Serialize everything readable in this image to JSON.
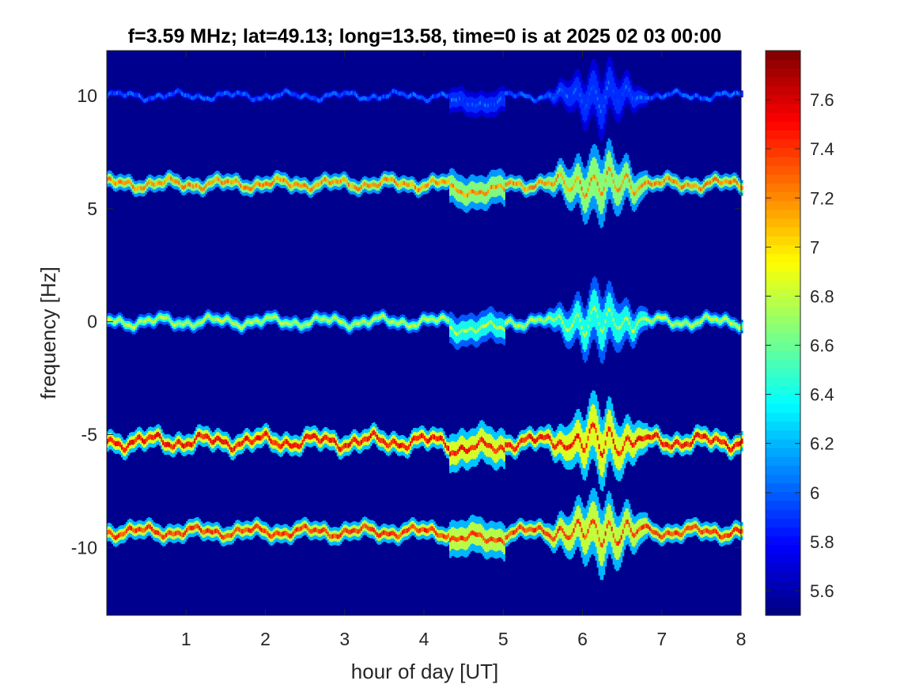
{
  "chart_data": {
    "type": "heatmap",
    "title": "f=3.59 MHz;  lat=49.13; long=13.58, time=0 is at 2025 02 03 00:00",
    "xlabel": "hour of day [UT]",
    "ylabel": "frequency [Hz]",
    "xlim": [
      0,
      8
    ],
    "ylim": [
      -13,
      12
    ],
    "xticks": [
      1,
      2,
      3,
      4,
      5,
      6,
      7,
      8
    ],
    "xtick_labels": [
      "1",
      "2",
      "3",
      "4",
      "5",
      "6",
      "7",
      "8"
    ],
    "yticks": [
      10,
      5,
      0,
      -5,
      -10
    ],
    "ytick_labels": [
      "10",
      "5",
      "0",
      "-5",
      "-10"
    ],
    "colormap": "jet",
    "background_color": "#00008f",
    "colorbar": {
      "clim": [
        5.5,
        7.8
      ],
      "ticks": [
        7.6,
        7.4,
        7.2,
        7,
        6.8,
        6.6,
        6.4,
        6.2,
        6,
        5.8,
        5.6
      ],
      "tick_labels": [
        "7.6",
        "7.4",
        "7.2",
        "7",
        "6.8",
        "6.6",
        "6.4",
        "6.2",
        "6",
        "5.8",
        "5.6"
      ]
    },
    "series": [
      {
        "center": 10.0,
        "amplitude": 0.12,
        "width": 0.15,
        "intensity": 6.1
      },
      {
        "center": 6.1,
        "amplitude": 0.15,
        "width": 0.35,
        "intensity": 7.3
      },
      {
        "center": 0.0,
        "amplitude": 0.15,
        "width": 0.3,
        "intensity": 6.9
      },
      {
        "center": -5.3,
        "amplitude": 0.2,
        "width": 0.45,
        "intensity": 7.6
      },
      {
        "center": -9.3,
        "amplitude": 0.15,
        "width": 0.4,
        "intensity": 7.5
      }
    ],
    "disturbance": {
      "x_range": [
        5.5,
        6.8
      ],
      "peak_x": 6.2,
      "spread": 1.2
    }
  }
}
